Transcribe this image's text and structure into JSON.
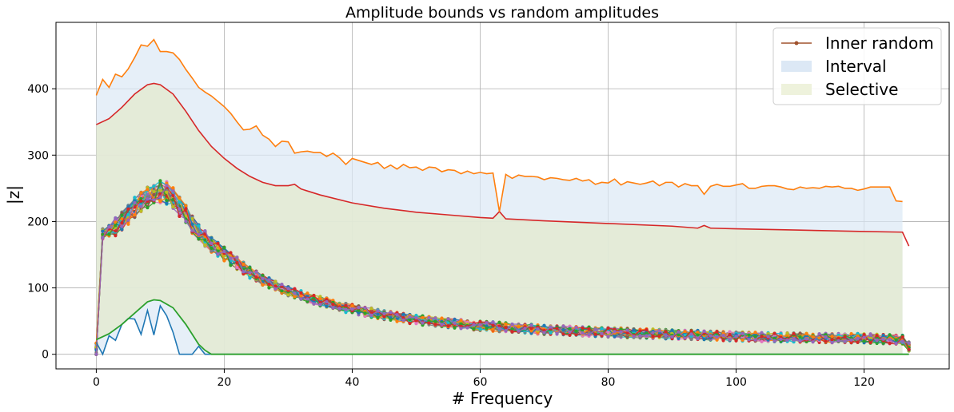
{
  "chart_data": {
    "type": "line",
    "title": "Amplitude bounds vs random amplitudes",
    "xlabel": "# Frequency",
    "ylabel": "|z|",
    "xlim": [
      -6.3,
      133.3
    ],
    "ylim": [
      -22,
      500
    ],
    "xticks": [
      0,
      20,
      40,
      60,
      80,
      100,
      120
    ],
    "yticks": [
      0,
      100,
      200,
      300,
      400
    ],
    "grid": true,
    "legend_position": "top-right",
    "legend": [
      {
        "label": "Inner random",
        "kind": "line-marker",
        "color": "#a0522d"
      },
      {
        "label": "Interval",
        "kind": "fill",
        "color": "#dce8f5"
      },
      {
        "label": "Selective",
        "kind": "fill",
        "color": "#eef2dc"
      }
    ],
    "interval_upper": {
      "color": "#ff7f0e",
      "x": [
        0,
        1,
        2,
        3,
        4,
        5,
        6,
        7,
        8,
        9,
        10,
        11,
        12,
        13,
        14,
        15,
        16,
        17,
        18,
        19,
        20,
        21,
        22,
        23,
        24,
        25,
        26,
        27,
        28,
        29,
        30,
        31,
        32,
        33,
        34,
        35,
        36,
        37,
        38,
        39,
        40,
        41,
        42,
        43,
        44,
        45,
        46,
        47,
        48,
        49,
        50,
        51,
        52,
        53,
        54,
        55,
        56,
        57,
        58,
        59,
        60,
        61,
        62,
        63,
        64,
        65,
        66,
        67,
        68,
        69,
        70,
        71,
        72,
        73,
        74,
        75,
        76,
        77,
        78,
        79,
        80,
        81,
        82,
        83,
        84,
        85,
        86,
        87,
        88,
        89,
        90,
        91,
        92,
        93,
        94,
        95,
        96,
        97,
        98,
        99,
        100,
        101,
        102,
        103,
        104,
        105,
        106,
        107,
        108,
        109,
        110,
        111,
        112,
        113,
        114,
        115,
        116,
        117,
        118,
        119,
        120,
        121,
        122,
        123,
        124,
        125,
        126
      ],
      "y": [
        390,
        414,
        402,
        422,
        418,
        430,
        447,
        466,
        464,
        474,
        456,
        456,
        454,
        444,
        429,
        416,
        402,
        395,
        389,
        381,
        373,
        363,
        350,
        338,
        339,
        344,
        330,
        324,
        313,
        321,
        320,
        303,
        305,
        306,
        304,
        304,
        298,
        303,
        296,
        286,
        295,
        292,
        289,
        286,
        289,
        280,
        285,
        279,
        286,
        281,
        282,
        277,
        282,
        281,
        275,
        278,
        277,
        272,
        276,
        272,
        274,
        272,
        273,
        215,
        271,
        265,
        270,
        268,
        268,
        267,
        263,
        266,
        265,
        263,
        262,
        265,
        261,
        263,
        256,
        259,
        258,
        264,
        255,
        260,
        258,
        256,
        258,
        261,
        254,
        259,
        259,
        252,
        257,
        254,
        254,
        241,
        253,
        256,
        253,
        253,
        255,
        257,
        250,
        250,
        253,
        254,
        254,
        252,
        249,
        248,
        252,
        250,
        251,
        250,
        253,
        252,
        253,
        250,
        250,
        247,
        249,
        252,
        252,
        252,
        252,
        231,
        230
      ]
    },
    "selective_upper": {
      "color": "#d62728",
      "x": [
        0,
        2,
        4,
        6,
        8,
        9,
        10,
        12,
        14,
        16,
        18,
        20,
        22,
        24,
        26,
        28,
        30,
        31,
        32,
        35,
        40,
        45,
        50,
        55,
        60,
        62,
        63,
        64,
        70,
        80,
        90,
        94,
        95,
        96,
        100,
        110,
        120,
        126,
        127
      ],
      "y": [
        346,
        355,
        372,
        392,
        406,
        408,
        406,
        392,
        366,
        337,
        313,
        295,
        280,
        268,
        259,
        254,
        254,
        256,
        249,
        240,
        228,
        220,
        214,
        210,
        206,
        205,
        215,
        204,
        201,
        197,
        193,
        190,
        194,
        190,
        189,
        187,
        185,
        184,
        163
      ]
    },
    "selective_lower": {
      "color": "#2ca02c",
      "x": [
        0,
        2,
        4,
        6,
        8,
        9,
        10,
        12,
        14,
        16,
        17,
        18,
        127
      ],
      "y": [
        22,
        31,
        45,
        62,
        79,
        82,
        81,
        70,
        45,
        15,
        6,
        0,
        0
      ]
    },
    "interval_lower": {
      "color": "#1f77b4",
      "x": [
        0,
        1,
        2,
        3,
        4,
        5,
        6,
        7,
        8,
        9,
        10,
        11,
        12,
        13,
        14,
        15,
        16,
        17,
        18,
        127
      ],
      "y": [
        18,
        0,
        28,
        21,
        45,
        54,
        53,
        30,
        66,
        29,
        73,
        58,
        33,
        0,
        0,
        0,
        12,
        0,
        0,
        0
      ]
    },
    "random_series": {
      "count": 25,
      "colors": [
        "#1f77b4",
        "#ff7f0e",
        "#2ca02c",
        "#d62728",
        "#9467bd",
        "#8c564b",
        "#e377c2",
        "#7f7f7f",
        "#bcbd22",
        "#17becf"
      ],
      "envelope_x": [
        0,
        1,
        2,
        3,
        4,
        5,
        6,
        7,
        8,
        9,
        10,
        11,
        12,
        13,
        14,
        15,
        16,
        17,
        18,
        19,
        20,
        22,
        24,
        26,
        28,
        30,
        32,
        34,
        36,
        38,
        40,
        45,
        50,
        55,
        60,
        65,
        70,
        75,
        80,
        90,
        100,
        110,
        120,
        126,
        127
      ],
      "envelope_y": [
        5,
        181,
        186,
        192,
        201,
        210,
        221,
        230,
        237,
        242,
        245,
        243,
        236,
        223,
        210,
        196,
        186,
        174,
        165,
        158,
        151,
        137,
        123,
        112,
        103,
        95,
        89,
        82,
        78,
        72,
        68,
        59,
        52,
        47,
        43,
        40,
        37,
        35,
        33,
        30,
        27,
        25,
        24,
        22,
        12
      ]
    }
  }
}
